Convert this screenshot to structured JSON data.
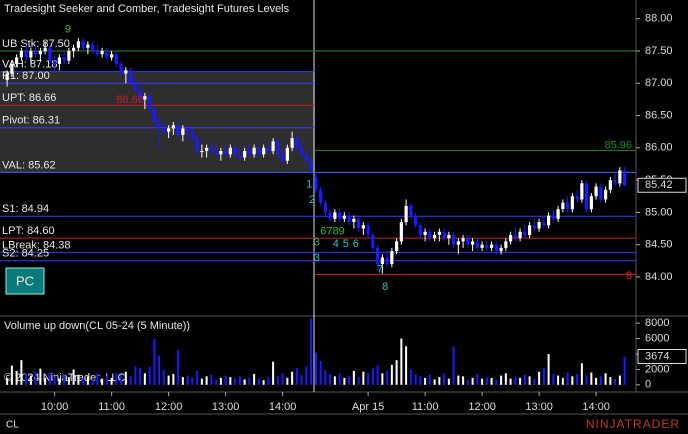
{
  "chart_data": [
    {
      "type": "candlestick",
      "title": "Tradesight Seeker and Comber, Tradesight Futures Levels",
      "up_color": "#ffffff",
      "down_color": "#1a1aff",
      "xlim": [
        -1.5,
        132.4
      ],
      "ylim": [
        83.41,
        88.29
      ],
      "yticks": [
        {
          "value": 88,
          "label": "88.00"
        },
        {
          "value": 87.5,
          "label": "87.50"
        },
        {
          "value": 87,
          "label": "87.00"
        },
        {
          "value": 86.5,
          "label": "86.50"
        },
        {
          "value": 86,
          "label": "86.00"
        },
        {
          "value": 85.5,
          "label": "85.50"
        },
        {
          "value": 85,
          "label": "85.00"
        },
        {
          "value": 84.5,
          "label": "84.50"
        },
        {
          "value": 84,
          "label": "84.00"
        }
      ],
      "xticks": [
        {
          "value": 10,
          "label": "10:00"
        },
        {
          "value": 22,
          "label": "11:00"
        },
        {
          "value": 34,
          "label": "12:00"
        },
        {
          "value": 46,
          "label": "13:00"
        },
        {
          "value": 58,
          "label": "14:00"
        },
        {
          "value": 76,
          "label": "Apr 15"
        },
        {
          "value": 88,
          "label": "11:00"
        },
        {
          "value": 100,
          "label": "12:00"
        },
        {
          "value": 112,
          "label": "13:00"
        },
        {
          "value": 124,
          "label": "14:00"
        }
      ],
      "ohlc": [
        [
          87.05,
          87.2,
          86.95,
          87.15
        ],
        [
          87.15,
          87.35,
          87.1,
          87.3
        ],
        [
          87.3,
          87.45,
          87.25,
          87.4
        ],
        [
          87.4,
          87.55,
          87.35,
          87.5
        ],
        [
          87.5,
          87.6,
          87.35,
          87.4
        ],
        [
          87.4,
          87.55,
          87.3,
          87.5
        ],
        [
          87.5,
          87.6,
          87.4,
          87.45
        ],
        [
          87.45,
          87.55,
          87.35,
          87.5
        ],
        [
          87.5,
          87.65,
          87.45,
          87.55
        ],
        [
          87.55,
          87.6,
          87.3,
          87.35
        ],
        [
          87.35,
          87.45,
          87.2,
          87.3
        ],
        [
          87.3,
          87.45,
          87.2,
          87.4
        ],
        [
          87.4,
          87.5,
          87.3,
          87.35
        ],
        [
          87.35,
          87.55,
          87.3,
          87.5
        ],
        [
          87.5,
          87.6,
          87.4,
          87.55
        ],
        [
          87.55,
          87.7,
          87.5,
          87.65
        ],
        [
          87.65,
          87.7,
          87.5,
          87.55
        ],
        [
          87.55,
          87.65,
          87.45,
          87.6
        ],
        [
          87.6,
          87.65,
          87.45,
          87.5
        ],
        [
          87.5,
          87.6,
          87.4,
          87.45
        ],
        [
          87.45,
          87.55,
          87.4,
          87.5
        ],
        [
          87.5,
          87.55,
          87.35,
          87.4
        ],
        [
          87.4,
          87.5,
          87.35,
          87.45
        ],
        [
          87.45,
          87.5,
          87.25,
          87.3
        ],
        [
          87.3,
          87.35,
          87.1,
          87.15
        ],
        [
          87.15,
          87.25,
          87.0,
          87.2
        ],
        [
          87.2,
          87.25,
          86.95,
          87.0
        ],
        [
          87.0,
          87.1,
          86.85,
          86.9
        ],
        [
          86.9,
          87.0,
          86.7,
          86.75
        ],
        [
          86.75,
          86.85,
          86.6,
          86.8
        ],
        [
          86.8,
          86.85,
          86.55,
          86.6
        ],
        [
          86.6,
          86.65,
          86.35,
          86.4
        ],
        [
          86.4,
          86.5,
          86.0,
          86.3
        ],
        [
          86.3,
          86.4,
          86.2,
          86.25
        ],
        [
          86.25,
          86.35,
          86.15,
          86.3
        ],
        [
          86.3,
          86.4,
          86.2,
          86.35
        ],
        [
          86.35,
          86.4,
          86.15,
          86.2
        ],
        [
          86.2,
          86.35,
          86.1,
          86.3
        ],
        [
          86.3,
          86.35,
          86.15,
          86.25
        ],
        [
          86.25,
          86.3,
          86.1,
          86.15
        ],
        [
          86.15,
          86.2,
          85.9,
          85.95
        ],
        [
          85.95,
          86.05,
          85.85,
          85.95
        ],
        [
          85.95,
          86.05,
          85.85,
          86.0
        ],
        [
          86.0,
          86.1,
          85.9,
          85.95
        ],
        [
          85.95,
          86.05,
          85.85,
          85.9
        ],
        [
          85.9,
          86.0,
          85.8,
          85.95
        ],
        [
          85.95,
          86.05,
          85.85,
          85.9
        ],
        [
          85.9,
          86.05,
          85.85,
          86.0
        ],
        [
          86.0,
          86.05,
          85.85,
          85.9
        ],
        [
          85.9,
          86.0,
          85.8,
          85.85
        ],
        [
          85.85,
          86.0,
          85.8,
          85.95
        ],
        [
          85.95,
          86.05,
          85.85,
          85.9
        ],
        [
          85.9,
          86.05,
          85.85,
          86.0
        ],
        [
          86.0,
          86.05,
          85.85,
          85.9
        ],
        [
          85.9,
          86.05,
          85.85,
          86.0
        ],
        [
          86.0,
          86.1,
          85.9,
          85.95
        ],
        [
          85.95,
          86.15,
          85.9,
          86.1
        ],
        [
          86.1,
          86.15,
          85.85,
          85.9
        ],
        [
          85.9,
          86.0,
          85.75,
          85.8
        ],
        [
          85.8,
          86.05,
          85.75,
          86.0
        ],
        [
          86.0,
          86.25,
          85.95,
          86.15
        ],
        [
          86.15,
          86.2,
          85.95,
          86.0
        ],
        [
          86.0,
          86.1,
          85.85,
          85.9
        ],
        [
          85.9,
          85.95,
          85.75,
          85.8
        ],
        [
          85.8,
          85.85,
          85.6,
          85.65
        ],
        [
          85.55,
          85.6,
          85.3,
          85.35
        ],
        [
          85.35,
          85.4,
          85.1,
          85.15
        ],
        [
          85.15,
          85.2,
          84.95,
          85.0
        ],
        [
          85.0,
          85.05,
          84.85,
          84.9
        ],
        [
          84.9,
          85.05,
          84.85,
          85.0
        ],
        [
          85.0,
          85.05,
          84.85,
          84.9
        ],
        [
          84.9,
          85.0,
          84.85,
          84.95
        ],
        [
          84.95,
          85.0,
          84.8,
          84.85
        ],
        [
          84.85,
          84.95,
          84.75,
          84.9
        ],
        [
          84.9,
          84.95,
          84.7,
          84.75
        ],
        [
          84.75,
          84.85,
          84.65,
          84.8
        ],
        [
          84.8,
          84.85,
          84.6,
          84.65
        ],
        [
          84.65,
          84.7,
          84.4,
          84.45
        ],
        [
          84.45,
          84.5,
          84.1,
          84.2
        ],
        [
          84.2,
          84.35,
          84.05,
          84.3
        ],
        [
          84.3,
          84.4,
          84.15,
          84.2
        ],
        [
          84.2,
          84.45,
          84.15,
          84.4
        ],
        [
          84.4,
          84.6,
          84.35,
          84.55
        ],
        [
          84.55,
          84.9,
          84.5,
          84.85
        ],
        [
          84.85,
          85.2,
          84.8,
          85.1
        ],
        [
          85.1,
          85.15,
          84.9,
          84.95
        ],
        [
          84.95,
          85.0,
          84.75,
          84.8
        ],
        [
          84.8,
          84.85,
          84.6,
          84.65
        ],
        [
          84.65,
          84.75,
          84.55,
          84.7
        ],
        [
          84.7,
          84.75,
          84.55,
          84.6
        ],
        [
          84.6,
          84.7,
          84.55,
          84.65
        ],
        [
          84.65,
          84.75,
          84.55,
          84.7
        ],
        [
          84.7,
          84.75,
          84.55,
          84.6
        ],
        [
          84.6,
          84.7,
          84.5,
          84.65
        ],
        [
          84.65,
          84.7,
          84.45,
          84.5
        ],
        [
          84.5,
          84.6,
          84.35,
          84.55
        ],
        [
          84.55,
          84.65,
          84.45,
          84.6
        ],
        [
          84.6,
          84.65,
          84.45,
          84.5
        ],
        [
          84.5,
          84.6,
          84.4,
          84.55
        ],
        [
          84.55,
          84.6,
          84.4,
          84.45
        ],
        [
          84.45,
          84.55,
          84.4,
          84.5
        ],
        [
          84.5,
          84.55,
          84.4,
          84.45
        ],
        [
          84.45,
          84.55,
          84.4,
          84.5
        ],
        [
          84.5,
          84.55,
          84.35,
          84.4
        ],
        [
          84.4,
          84.5,
          84.35,
          84.45
        ],
        [
          84.45,
          84.6,
          84.4,
          84.55
        ],
        [
          84.55,
          84.7,
          84.5,
          84.65
        ],
        [
          84.65,
          84.75,
          84.55,
          84.6
        ],
        [
          84.6,
          84.75,
          84.55,
          84.7
        ],
        [
          84.7,
          84.8,
          84.6,
          84.65
        ],
        [
          84.65,
          84.85,
          84.6,
          84.8
        ],
        [
          84.8,
          84.9,
          84.7,
          84.75
        ],
        [
          84.75,
          84.9,
          84.7,
          84.85
        ],
        [
          84.85,
          84.95,
          84.75,
          84.8
        ],
        [
          84.8,
          85.0,
          84.75,
          84.95
        ],
        [
          84.95,
          85.05,
          84.85,
          84.9
        ],
        [
          84.9,
          85.1,
          84.85,
          85.05
        ],
        [
          85.05,
          85.2,
          85.0,
          85.15
        ],
        [
          85.15,
          85.25,
          85.0,
          85.05
        ],
        [
          85.05,
          85.3,
          85.0,
          85.25
        ],
        [
          85.25,
          85.35,
          85.15,
          85.2
        ],
        [
          85.2,
          85.5,
          85.15,
          85.45
        ],
        [
          85.45,
          85.5,
          85.0,
          85.05
        ],
        [
          85.05,
          85.3,
          85.0,
          85.25
        ],
        [
          85.25,
          85.45,
          85.2,
          85.4
        ],
        [
          85.4,
          85.45,
          85.15,
          85.2
        ],
        [
          85.2,
          85.4,
          85.15,
          85.35
        ],
        [
          85.35,
          85.55,
          85.3,
          85.5
        ],
        [
          85.5,
          85.6,
          85.4,
          85.45
        ],
        [
          85.45,
          85.7,
          85.4,
          85.65
        ],
        [
          85.65,
          85.7,
          85.4,
          85.42
        ]
      ],
      "levels": [
        {
          "label": "UB Stk: 87.50",
          "value": 87.5,
          "color": "#1f8f1f",
          "span": "all",
          "label_side": "left"
        },
        {
          "label": "VAH: 87.18",
          "value": 87.18,
          "color": "#3a3aff",
          "span": "day1",
          "label_side": "left"
        },
        {
          "label": "R1: 87.00",
          "value": 87.0,
          "color": "#3a3aff",
          "span": "day1",
          "label_side": "left"
        },
        {
          "label": "UPT: 86.66",
          "value": 86.66,
          "color": "#c02020",
          "span": "day1",
          "label_side": "left"
        },
        {
          "label": "Pivot: 86.31",
          "value": 86.31,
          "color": "#3a3aff",
          "span": "day1",
          "label_side": "left"
        },
        {
          "label": "VAL: 85.62",
          "value": 85.62,
          "color": "#3a6aff",
          "span": "all",
          "label_side": "left"
        },
        {
          "label": "S1: 84.94",
          "value": 84.94,
          "color": "#3a3aff",
          "span": "all",
          "label_side": "left"
        },
        {
          "label": "LPT: 84.60",
          "value": 84.6,
          "color": "#c02020",
          "span": "all",
          "label_side": "left"
        },
        {
          "label": "LBreak: 84.38",
          "value": 84.38,
          "color": "#3a3aff",
          "span": "all",
          "label_side": "left"
        },
        {
          "label": "S2: 84.25",
          "value": 84.25,
          "color": "#3a3aff",
          "span": "all",
          "label_side": "left"
        },
        {
          "label": "85.96",
          "value": 85.96,
          "color": "#1f8f1f",
          "span": "day2",
          "label_side": "right"
        },
        {
          "label": "8",
          "value": 84.04,
          "color": "#e02020",
          "span": "day2",
          "label_side": "right"
        }
      ],
      "shade_between": [
        1,
        5
      ],
      "shade_color": "#2e2e2e",
      "annotations": [
        {
          "text": "9",
          "x": 12.8,
          "y": 87.83,
          "color": "#2fbf2f"
        },
        {
          "text": "86.66",
          "x": 25.9,
          "y": 86.74,
          "color": "#c02020"
        },
        {
          "text": "1",
          "x": 63.6,
          "y": 85.43,
          "color": "#22c8c8"
        },
        {
          "text": "2",
          "x": 64.2,
          "y": 85.19,
          "color": "#22c8c8"
        },
        {
          "text": "6789",
          "x": 68.5,
          "y": 84.7,
          "color": "#2fbf2f"
        },
        {
          "text": "3",
          "x": 65.2,
          "y": 84.53,
          "color": "#2fbf2f"
        },
        {
          "text": "3",
          "x": 65.2,
          "y": 84.29,
          "color": "#22c8c8"
        },
        {
          "text": "4",
          "x": 69.2,
          "y": 84.51,
          "color": "#22c8c8"
        },
        {
          "text": "5",
          "x": 71.3,
          "y": 84.51,
          "color": "#22c8c8"
        },
        {
          "text": "6",
          "x": 73.4,
          "y": 84.51,
          "color": "#22c8c8"
        },
        {
          "text": "7",
          "x": 78.5,
          "y": 84.11,
          "color": "#22c8c8"
        },
        {
          "text": "8",
          "x": 79.6,
          "y": 83.84,
          "color": "#22c8c8"
        }
      ]
    },
    {
      "type": "bar",
      "title": "Volume up down(CL 05-24 (5 Minute))",
      "ylim": [
        -930,
        8670
      ],
      "yticks": [
        8000,
        6000,
        4000,
        2000,
        0
      ],
      "values": [
        900,
        2500,
        1800,
        3200,
        1500,
        1200,
        1700,
        2100,
        900,
        1600,
        1100,
        800,
        1400,
        1000,
        2000,
        1300,
        900,
        1100,
        700,
        1500,
        800,
        1200,
        900,
        1600,
        1300,
        1700,
        1100,
        2400,
        2200,
        1500,
        2300,
        6000,
        3800,
        1900,
        1200,
        1400,
        4500,
        1000,
        1200,
        900,
        1800,
        800,
        1100,
        1300,
        700,
        900,
        1200,
        1000,
        800,
        1100,
        700,
        900,
        1400,
        800,
        600,
        1000,
        3000,
        1100,
        1500,
        900,
        1700,
        2200,
        1300,
        2400,
        8600,
        4200,
        3100,
        1900,
        1400,
        1100,
        1500,
        900,
        1200,
        1800,
        1000,
        1700,
        1500,
        2200,
        2500,
        1500,
        1800,
        2600,
        3200,
        6000,
        5000,
        2000,
        1400,
        1100,
        900,
        1300,
        700,
        1000,
        1500,
        800,
        5000,
        1200,
        1100,
        600,
        900,
        1400,
        800,
        1000,
        900,
        700,
        1200,
        1500,
        800,
        1000,
        900,
        1300,
        1100,
        800,
        1700,
        2200,
        4000,
        1400,
        1200,
        900,
        1600,
        1100,
        1400,
        2800,
        1200,
        1600,
        900,
        1100,
        1500,
        1000,
        800,
        1200,
        3674
      ]
    }
  ],
  "ui": {
    "button": "PC",
    "copyright": "© 2024 NinjaTrader, LLC",
    "instrument": "CL",
    "logo": "NINJATRADER"
  }
}
